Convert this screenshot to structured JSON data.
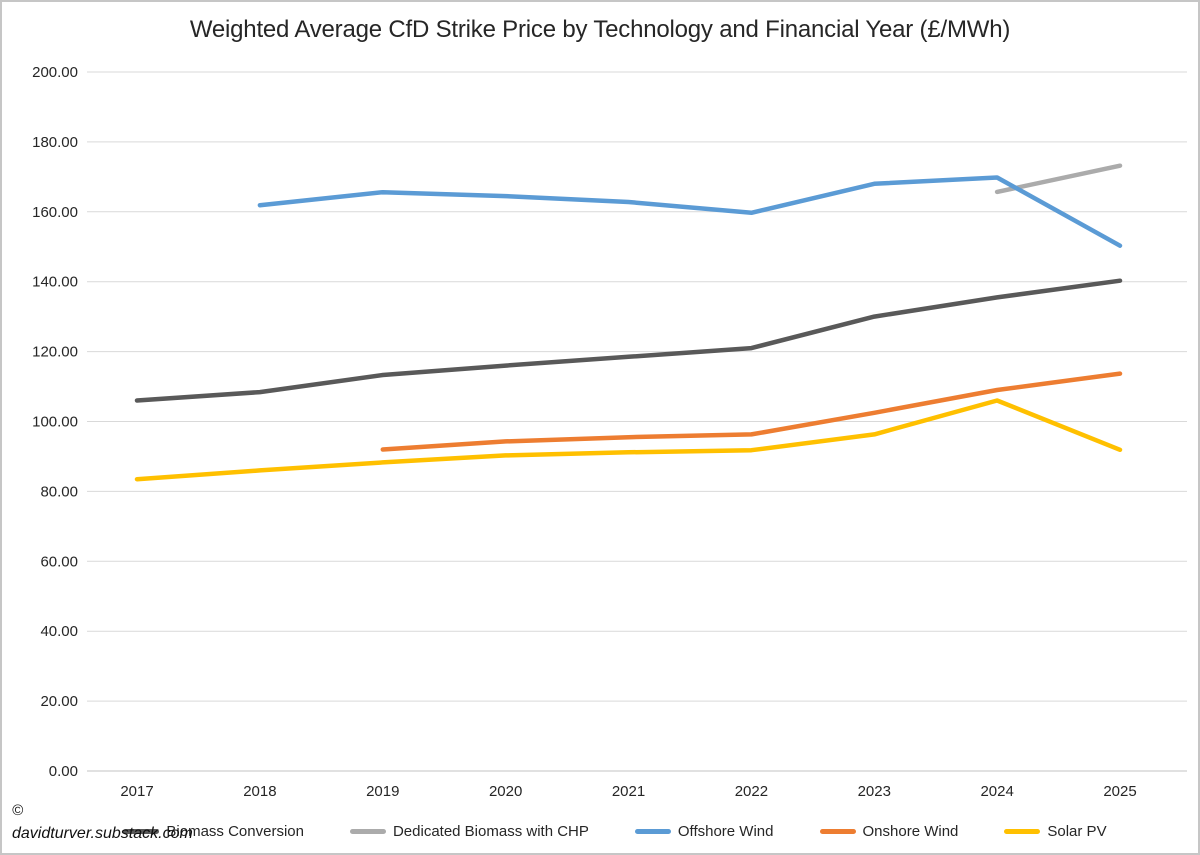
{
  "title": "Weighted Average CfD Strike Price by Technology and Financial Year (£/MWh)",
  "watermark": {
    "symbol": "©",
    "site": "davidturver.substack.com"
  },
  "colors": {
    "grid": "#d9d9d9",
    "axis_line": "#c3c3c3",
    "text": "#262626"
  },
  "chart_data": {
    "type": "line",
    "title": "Weighted Average CfD Strike Price by Technology and Financial Year (£/MWh)",
    "xlabel": "",
    "ylabel": "",
    "categories": [
      "2017",
      "2018",
      "2019",
      "2020",
      "2021",
      "2022",
      "2023",
      "2024",
      "2025"
    ],
    "series": [
      {
        "name": "Biomass Conversion",
        "color": "#595959",
        "values": [
          106.0,
          108.4,
          113.3,
          116.0,
          118.5,
          121.0,
          130.0,
          135.5,
          140.3
        ]
      },
      {
        "name": "Dedicated Biomass with CHP",
        "color": "#ababab",
        "values": [
          null,
          null,
          null,
          null,
          null,
          null,
          null,
          165.7,
          173.2
        ]
      },
      {
        "name": "Offshore Wind",
        "color": "#5b9bd5",
        "values": [
          null,
          161.9,
          165.6,
          164.5,
          162.8,
          159.7,
          168.0,
          169.8,
          150.3
        ]
      },
      {
        "name": "Onshore Wind",
        "color": "#ed7d31",
        "values": [
          null,
          null,
          92.0,
          94.3,
          95.5,
          96.3,
          102.5,
          109.0,
          113.7
        ]
      },
      {
        "name": "Solar PV",
        "color": "#ffc000",
        "values": [
          83.5,
          86.0,
          88.3,
          90.3,
          91.2,
          91.8,
          96.3,
          106.0,
          91.9
        ]
      }
    ],
    "ylim": [
      0,
      200
    ],
    "ytick_step": 20,
    "ytick_decimals": 2,
    "grid": "horizontal",
    "legend_position": "bottom"
  }
}
